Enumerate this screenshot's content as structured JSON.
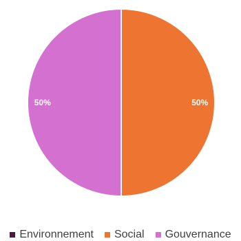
{
  "chart_data": {
    "type": "pie",
    "categories": [
      "Environnement",
      "Social",
      "Gouvernance"
    ],
    "values": [
      0,
      50,
      50
    ],
    "data_labels": [
      "",
      "50%",
      "50%"
    ],
    "colors": [
      "#4a1942",
      "#ed7431",
      "#d470d0"
    ],
    "legend_position": "bottom",
    "start_angle": "12 o'clock",
    "direction": "clockwise"
  }
}
